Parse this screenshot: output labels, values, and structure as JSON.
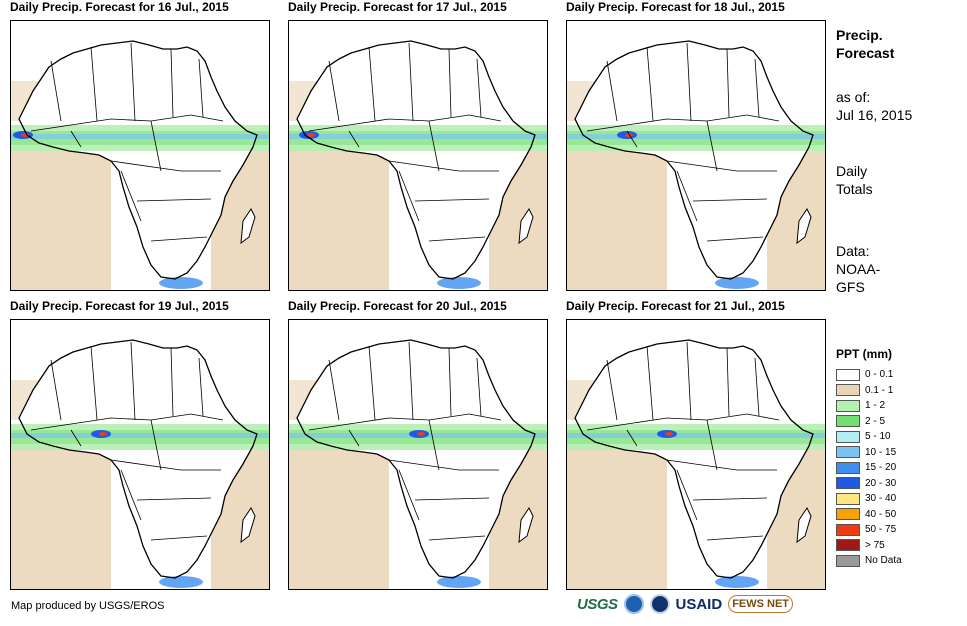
{
  "maps": [
    {
      "title": "Daily Precip. Forecast for 16 Jul., 2015"
    },
    {
      "title": "Daily Precip. Forecast for 17 Jul., 2015"
    },
    {
      "title": "Daily Precip. Forecast for 18 Jul., 2015"
    },
    {
      "title": "Daily Precip. Forecast for 19 Jul., 2015"
    },
    {
      "title": "Daily Precip. Forecast for 20 Jul., 2015"
    },
    {
      "title": "Daily Precip. Forecast for 21 Jul., 2015"
    }
  ],
  "sidebar": {
    "title_line1": "Precip.",
    "title_line2": "Forecast",
    "asof_label": "as of:",
    "asof_date": "Jul 16, 2015",
    "totals_line1": "Daily",
    "totals_line2": "Totals",
    "data_line1": "Data:",
    "data_line2": "NOAA-",
    "data_line3": "GFS"
  },
  "legend": {
    "title": "PPT (mm)",
    "items": [
      {
        "label": "0 - 0.1",
        "color": "#ffffff"
      },
      {
        "label": "0.1 - 1",
        "color": "#e9d5b5"
      },
      {
        "label": "1 - 2",
        "color": "#b4f0b0"
      },
      {
        "label": "2 - 5",
        "color": "#74e070"
      },
      {
        "label": "5 - 10",
        "color": "#b0eef2"
      },
      {
        "label": "10 - 15",
        "color": "#7cc3f5"
      },
      {
        "label": "15 - 20",
        "color": "#3d8ff0"
      },
      {
        "label": "20 - 30",
        "color": "#1e5ae6"
      },
      {
        "label": "30 - 40",
        "color": "#ffe680"
      },
      {
        "label": "40 - 50",
        "color": "#f5a300"
      },
      {
        "label": "50 - 75",
        "color": "#f03c10"
      },
      {
        "label": "> 75",
        "color": "#a01818"
      },
      {
        "label": "No Data",
        "color": "#9a9a9a"
      }
    ]
  },
  "footer": {
    "credit": "Map produced by USGS/EROS",
    "logos": {
      "usgs": "USGS",
      "usaid": "USAID",
      "fews": "FEWS NET"
    }
  }
}
